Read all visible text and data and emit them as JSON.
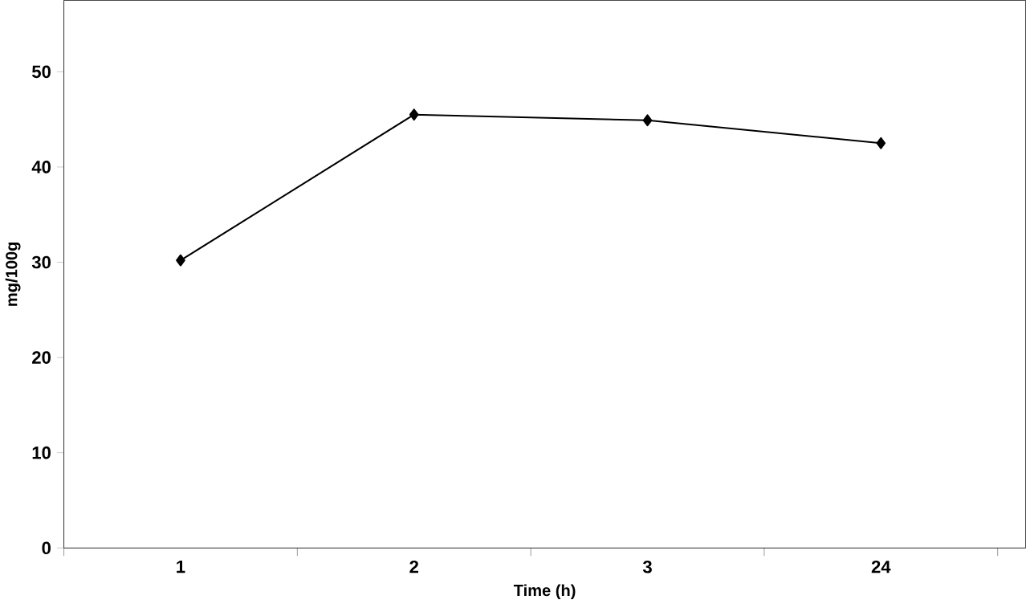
{
  "chart_data": {
    "type": "line",
    "xlabel": "Time (h)",
    "ylabel": "mg/100g",
    "categories": [
      "1",
      "2",
      "3",
      "24"
    ],
    "series": [
      {
        "color": "#000000",
        "values": [
          30.2,
          45.5,
          44.9,
          42.5
        ]
      }
    ],
    "ylim": [
      0,
      57.5
    ],
    "yticks": [
      0,
      10,
      20,
      30,
      40,
      50
    ],
    "marker": "diamond",
    "line_style": "solid",
    "grid": false
  }
}
